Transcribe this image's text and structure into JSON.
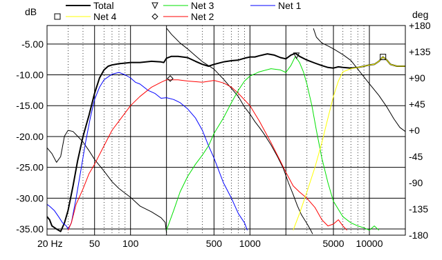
{
  "chart_data": {
    "type": "line",
    "title": "",
    "x_scale": "log",
    "x_range": [
      20,
      20000
    ],
    "y_left_label": "dB",
    "y_left_range": [
      -36,
      -2
    ],
    "y_right_label": "deg",
    "y_right_range": [
      -180,
      180
    ],
    "x_ticks": [
      {
        "value": 20,
        "label": "20 Hz"
      },
      {
        "value": 50,
        "label": "50"
      },
      {
        "value": 100,
        "label": "100"
      },
      {
        "value": 500,
        "label": "500"
      },
      {
        "value": 1000,
        "label": "1000"
      },
      {
        "value": 5000,
        "label": "5000"
      },
      {
        "value": 10000,
        "label": "10000"
      }
    ],
    "y_left_ticks": [
      {
        "value": -5,
        "label": "-5.00"
      },
      {
        "value": -10,
        "label": "-10.00"
      },
      {
        "value": -15,
        "label": "-15.00"
      },
      {
        "value": -20,
        "label": "-20.00"
      },
      {
        "value": -25,
        "label": "-25.00"
      },
      {
        "value": -30,
        "label": "-30.00"
      },
      {
        "value": -35,
        "label": "-35.00"
      }
    ],
    "y_right_ticks": [
      {
        "value": 180,
        "label": "+180"
      },
      {
        "value": 135,
        "label": "+135"
      },
      {
        "value": 90,
        "label": "+90"
      },
      {
        "value": 45,
        "label": "+45"
      },
      {
        "value": 0,
        "label": "+0"
      },
      {
        "value": -45,
        "label": "-45"
      },
      {
        "value": -90,
        "label": "-90"
      },
      {
        "value": -135,
        "label": "-135"
      },
      {
        "value": -180,
        "label": "-180"
      }
    ],
    "grid": true,
    "legend_position": "top",
    "legend": [
      {
        "name": "Total",
        "color": "#000000",
        "marker": "",
        "width": 2
      },
      {
        "name": "Net 3",
        "color": "#00e000",
        "marker": "triangle-down",
        "width": 1
      },
      {
        "name": "Net 1",
        "color": "#0000ff",
        "marker": "",
        "width": 1
      },
      {
        "name": "Net 4",
        "color": "#ffff00",
        "marker": "square",
        "width": 1
      },
      {
        "name": "Net 2",
        "color": "#ff0000",
        "marker": "diamond",
        "width": 1
      }
    ],
    "series": [
      {
        "name": "Total",
        "color": "#000000",
        "width": 2,
        "axis": "left",
        "points": [
          [
            20,
            -33
          ],
          [
            21,
            -33.5
          ],
          [
            22,
            -34.5
          ],
          [
            24,
            -35
          ],
          [
            26,
            -35.4
          ],
          [
            28,
            -34
          ],
          [
            30,
            -32
          ],
          [
            33,
            -28
          ],
          [
            36,
            -24
          ],
          [
            40,
            -20
          ],
          [
            45,
            -16.5
          ],
          [
            50,
            -13
          ],
          [
            55,
            -10.5
          ],
          [
            60,
            -9.2
          ],
          [
            65,
            -8.6
          ],
          [
            70,
            -8.4
          ],
          [
            80,
            -8.2
          ],
          [
            90,
            -8.1
          ],
          [
            100,
            -8.0
          ],
          [
            120,
            -8.0
          ],
          [
            150,
            -7.8
          ],
          [
            180,
            -7.9
          ],
          [
            190,
            -8.0
          ],
          [
            200,
            -7.3
          ],
          [
            220,
            -7.0
          ],
          [
            250,
            -7.0
          ],
          [
            300,
            -7.2
          ],
          [
            350,
            -7.8
          ],
          [
            400,
            -8.3
          ],
          [
            450,
            -8.6
          ],
          [
            500,
            -8.3
          ],
          [
            600,
            -7.9
          ],
          [
            700,
            -7.7
          ],
          [
            800,
            -7.6
          ],
          [
            900,
            -7.3
          ],
          [
            1000,
            -7.1
          ],
          [
            1100,
            -7.1
          ],
          [
            1200,
            -6.9
          ],
          [
            1400,
            -6.6
          ],
          [
            1600,
            -6.8
          ],
          [
            1800,
            -7.2
          ],
          [
            2000,
            -7.4
          ],
          [
            2200,
            -6.8
          ],
          [
            2400,
            -6.5
          ],
          [
            2600,
            -7.0
          ],
          [
            3000,
            -7.6
          ],
          [
            3500,
            -8.1
          ],
          [
            4000,
            -8.5
          ],
          [
            4500,
            -8.8
          ],
          [
            5000,
            -8.9
          ],
          [
            5500,
            -8.7
          ],
          [
            6000,
            -8.8
          ],
          [
            7000,
            -8.9
          ],
          [
            8000,
            -8.8
          ],
          [
            9000,
            -8.6
          ],
          [
            10000,
            -8.4
          ],
          [
            11000,
            -8.3
          ],
          [
            12000,
            -7.8
          ],
          [
            13000,
            -7.1
          ],
          [
            14000,
            -7.6
          ],
          [
            15000,
            -8.3
          ],
          [
            17000,
            -8.6
          ],
          [
            20000,
            -8.6
          ]
        ]
      },
      {
        "name": "Total phase",
        "color": "#000000",
        "width": 1,
        "axis": "right",
        "points": [
          [
            20,
            -30
          ],
          [
            22,
            -40
          ],
          [
            24,
            -55
          ],
          [
            26,
            -45
          ],
          [
            28,
            -10
          ],
          [
            30,
            0
          ],
          [
            33,
            -2
          ],
          [
            36,
            -10
          ],
          [
            40,
            -20
          ],
          [
            45,
            -35
          ],
          [
            50,
            -50
          ],
          [
            60,
            -70
          ],
          [
            70,
            -88
          ],
          [
            80,
            -100
          ],
          [
            100,
            -115
          ],
          [
            120,
            -130
          ],
          [
            150,
            -140
          ],
          [
            180,
            -150
          ],
          [
            195,
            -158
          ],
          [
            200,
            -176
          ],
          [
            201,
            175
          ],
          [
            220,
            165
          ],
          [
            260,
            150
          ],
          [
            300,
            140
          ],
          [
            350,
            128
          ],
          [
            400,
            118
          ],
          [
            500,
            105
          ],
          [
            600,
            88
          ],
          [
            700,
            72
          ],
          [
            800,
            58
          ],
          [
            900,
            40
          ],
          [
            1000,
            28
          ],
          [
            1100,
            15
          ],
          [
            1200,
            5
          ],
          [
            1300,
            -5
          ],
          [
            1500,
            -25
          ],
          [
            1700,
            -45
          ],
          [
            1900,
            -65
          ],
          [
            2100,
            -90
          ],
          [
            2300,
            -110
          ],
          [
            2500,
            -130
          ],
          [
            2700,
            -145
          ],
          [
            3000,
            -160
          ],
          [
            3200,
            -170
          ],
          [
            3350,
            -178
          ],
          [
            3400,
            175
          ],
          [
            3600,
            160
          ],
          [
            4000,
            150
          ],
          [
            4500,
            145
          ],
          [
            5000,
            140
          ],
          [
            6000,
            130
          ],
          [
            7000,
            120
          ],
          [
            8000,
            105
          ],
          [
            10000,
            80
          ],
          [
            12000,
            60
          ],
          [
            14000,
            40
          ],
          [
            16000,
            20
          ],
          [
            18000,
            5
          ],
          [
            20000,
            -2
          ]
        ]
      },
      {
        "name": "Net 1",
        "color": "#0000ff",
        "width": 1,
        "axis": "left",
        "points": [
          [
            20,
            -31
          ],
          [
            21,
            -31.3
          ],
          [
            23,
            -32
          ],
          [
            25,
            -33
          ],
          [
            27,
            -34
          ],
          [
            29,
            -34.5
          ],
          [
            30,
            -35
          ],
          [
            32,
            -34
          ],
          [
            35,
            -30
          ],
          [
            38,
            -26
          ],
          [
            42,
            -21
          ],
          [
            46,
            -17
          ],
          [
            50,
            -14
          ],
          [
            55,
            -12
          ],
          [
            60,
            -10.8
          ],
          [
            70,
            -9.9
          ],
          [
            80,
            -9.6
          ],
          [
            90,
            -10
          ],
          [
            100,
            -10.5
          ],
          [
            110,
            -11.2
          ],
          [
            120,
            -11.5
          ],
          [
            140,
            -12.5
          ],
          [
            160,
            -13
          ],
          [
            180,
            -13.8
          ],
          [
            200,
            -13.7
          ],
          [
            230,
            -14
          ],
          [
            260,
            -14.5
          ],
          [
            300,
            -15.5
          ],
          [
            350,
            -17
          ],
          [
            400,
            -19
          ],
          [
            450,
            -21.5
          ],
          [
            500,
            -23.5
          ],
          [
            600,
            -27.5
          ],
          [
            700,
            -30
          ],
          [
            800,
            -32.5
          ],
          [
            900,
            -34
          ],
          [
            950,
            -35.2
          ]
        ]
      },
      {
        "name": "Net 2",
        "color": "#ff0000",
        "width": 1,
        "axis": "left",
        "points": [
          [
            30,
            -35.2
          ],
          [
            32,
            -34
          ],
          [
            35,
            -31
          ],
          [
            40,
            -28.5
          ],
          [
            45,
            -26
          ],
          [
            50,
            -24.5
          ],
          [
            60,
            -21.5
          ],
          [
            70,
            -19
          ],
          [
            80,
            -17.5
          ],
          [
            100,
            -15
          ],
          [
            120,
            -13.5
          ],
          [
            150,
            -12
          ],
          [
            180,
            -11.2
          ],
          [
            200,
            -10.8
          ],
          [
            250,
            -10.8
          ],
          [
            300,
            -11
          ],
          [
            400,
            -11.2
          ],
          [
            500,
            -10.9
          ],
          [
            600,
            -11.3
          ],
          [
            700,
            -12
          ],
          [
            800,
            -13
          ],
          [
            1000,
            -15
          ],
          [
            1200,
            -17.5
          ],
          [
            1500,
            -21
          ],
          [
            1800,
            -24
          ],
          [
            2000,
            -25.8
          ],
          [
            2300,
            -28
          ],
          [
            2600,
            -29
          ],
          [
            3000,
            -30
          ],
          [
            3500,
            -31.5
          ],
          [
            4000,
            -33.5
          ],
          [
            4500,
            -34.5
          ],
          [
            5000,
            -34.2
          ],
          [
            5500,
            -33.5
          ],
          [
            6000,
            -34.5
          ],
          [
            6500,
            -35.2
          ]
        ]
      },
      {
        "name": "Net 3",
        "color": "#00e000",
        "width": 1,
        "axis": "left",
        "points": [
          [
            200,
            -35.2
          ],
          [
            230,
            -32
          ],
          [
            260,
            -29
          ],
          [
            300,
            -26.5
          ],
          [
            350,
            -24.5
          ],
          [
            400,
            -23
          ],
          [
            450,
            -21.5
          ],
          [
            500,
            -19.5
          ],
          [
            600,
            -17
          ],
          [
            700,
            -14.5
          ],
          [
            800,
            -12.5
          ],
          [
            900,
            -11
          ],
          [
            1000,
            -10.2
          ],
          [
            1200,
            -9.5
          ],
          [
            1500,
            -9.0
          ],
          [
            1800,
            -9.2
          ],
          [
            2000,
            -9.6
          ],
          [
            2200,
            -8.5
          ],
          [
            2400,
            -7.0
          ],
          [
            2600,
            -8.0
          ],
          [
            2800,
            -9.5
          ],
          [
            3000,
            -11.5
          ],
          [
            3300,
            -15
          ],
          [
            3600,
            -19
          ],
          [
            4000,
            -23.5
          ],
          [
            4500,
            -27.5
          ],
          [
            5000,
            -30.5
          ],
          [
            6000,
            -33
          ],
          [
            7000,
            -34
          ],
          [
            8000,
            -34.5
          ],
          [
            9000,
            -34.8
          ],
          [
            10000,
            -35.2
          ],
          [
            11000,
            -34.5
          ],
          [
            12000,
            -35.2
          ]
        ]
      },
      {
        "name": "Net 4",
        "color": "#ffff00",
        "width": 1,
        "axis": "left",
        "points": [
          [
            2300,
            -35.2
          ],
          [
            2600,
            -32.5
          ],
          [
            3000,
            -29
          ],
          [
            3500,
            -25
          ],
          [
            4000,
            -21
          ],
          [
            4500,
            -17
          ],
          [
            5000,
            -13.5
          ],
          [
            5500,
            -11
          ],
          [
            6000,
            -9.5
          ],
          [
            7000,
            -9
          ],
          [
            8000,
            -8.8
          ],
          [
            9000,
            -8.6
          ],
          [
            10000,
            -8.4
          ],
          [
            11000,
            -8.3
          ],
          [
            12000,
            -7.8
          ],
          [
            13000,
            -7.1
          ],
          [
            14000,
            -7.6
          ],
          [
            15000,
            -8.3
          ],
          [
            17000,
            -8.6
          ],
          [
            20000,
            -8.6
          ]
        ]
      }
    ],
    "markers": [
      {
        "series": "Net 3",
        "shape": "triangle-down",
        "x": 2450,
        "y": -6.9,
        "color": "#000000"
      },
      {
        "series": "Net 4",
        "shape": "square",
        "x": 13000,
        "y": -7.1,
        "color": "#000000"
      },
      {
        "series": "Net 2",
        "shape": "diamond",
        "x": 215,
        "y": -10.6,
        "color": "#000000"
      }
    ]
  }
}
